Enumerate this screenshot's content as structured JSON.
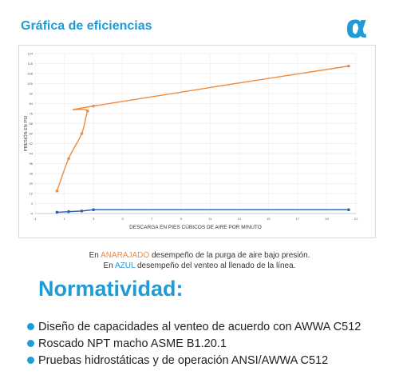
{
  "header": {
    "title": "Gráfica de eficiencias",
    "logo_glyph": "α",
    "logo_color": "#1f9bd6"
  },
  "chart_data": {
    "type": "line",
    "xlabel": "DESCARGA EN PIES CÚBICOS DE AIRE POR MINUTO",
    "ylabel": "PRESIÓN EN PSI",
    "xlim": [
      -1,
      21
    ],
    "ylim": [
      -4,
      124
    ],
    "x_ticks": [
      "-1",
      "1",
      "3",
      "5",
      "7",
      "9",
      "11",
      "13",
      "15",
      "17",
      "19",
      "21"
    ],
    "y_ticks": [
      "-4",
      "4",
      "12",
      "20",
      "28",
      "36",
      "44",
      "52",
      "60",
      "68",
      "76",
      "84",
      "92",
      "100",
      "108",
      "116",
      "124"
    ],
    "grid": true,
    "series": [
      {
        "color": "#f08a3c",
        "x": [
          0.5,
          1.3,
          2.2,
          2.6,
          3.0,
          20.5
        ],
        "y": [
          14,
          40,
          60,
          78,
          82,
          114
        ],
        "smooth": true
      },
      {
        "color": "#2e5fa8",
        "x": [
          0.5,
          1.3,
          2.2,
          3.0,
          20.5
        ],
        "y": [
          -3,
          -2.5,
          -2,
          -1,
          -1
        ],
        "smooth": false
      }
    ]
  },
  "caption": {
    "line1_pre": "En ",
    "line1_color": "ANARAJADO",
    "line1_post": " desempeño de la purga de aire bajo presión.",
    "line2_pre": "En ",
    "line2_color": "AZUL",
    "line2_post": " desempeño del venteo al llenado de la línea."
  },
  "section": {
    "title": "Normatividad:",
    "items": [
      "Diseño de capacidades al venteo de acuerdo con AWWA C512",
      "Roscado NPT macho ASME B1.20.1",
      "Pruebas hidrostáticas y de operación ANSI/AWWA C512"
    ]
  }
}
